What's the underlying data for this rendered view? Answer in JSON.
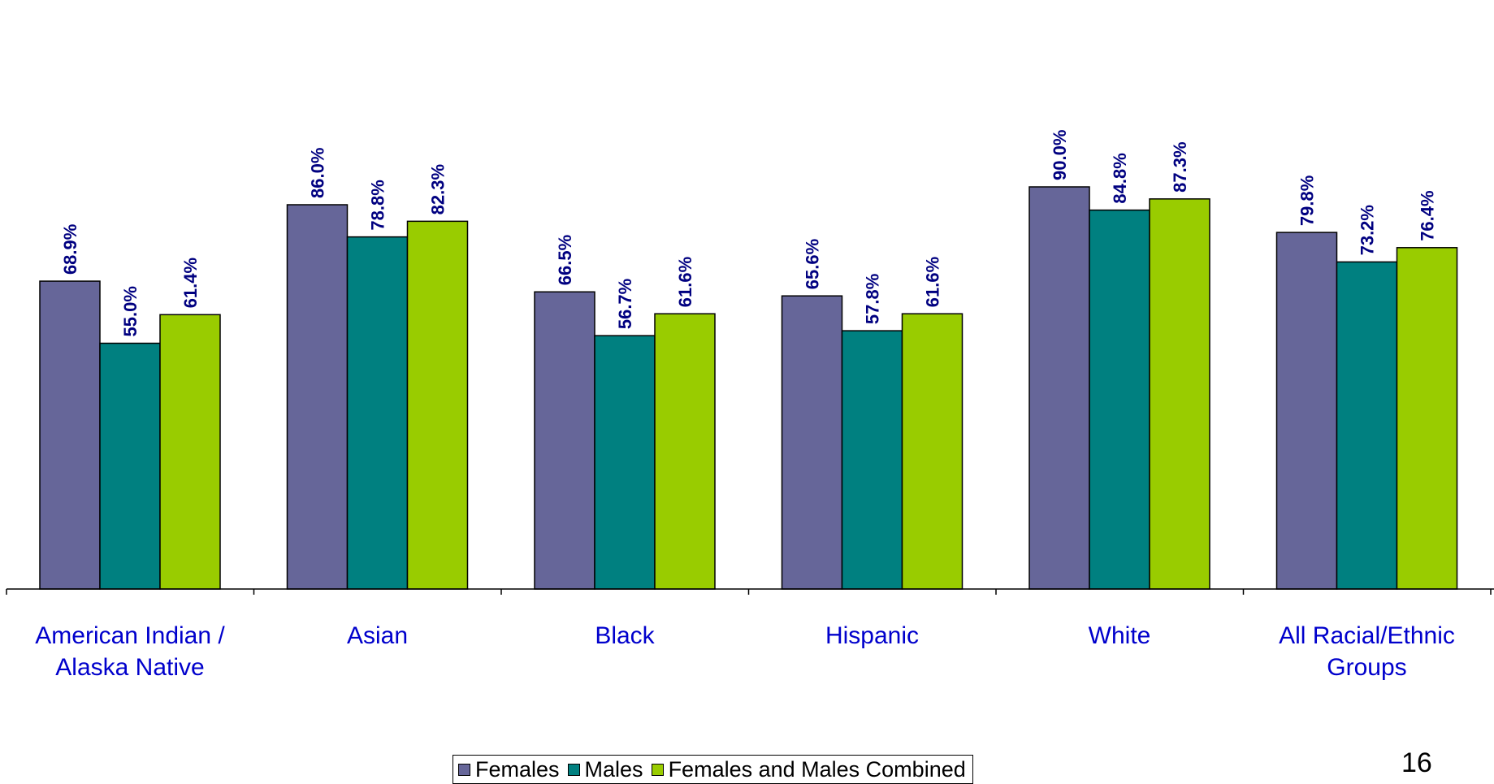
{
  "chart_data": {
    "type": "bar",
    "categories": [
      "American Indian / Alaska Native",
      "Asian",
      "Black",
      "Hispanic",
      "White",
      "All Racial/Ethnic Groups"
    ],
    "category_lines": [
      [
        "American Indian /",
        "Alaska Native"
      ],
      [
        "Asian"
      ],
      [
        "Black"
      ],
      [
        "Hispanic"
      ],
      [
        "White"
      ],
      [
        "All Racial/Ethnic",
        "Groups"
      ]
    ],
    "series": [
      {
        "name": "Females",
        "color": "#666699",
        "values": [
          68.9,
          86.0,
          66.5,
          65.6,
          90.0,
          79.8
        ],
        "labels": [
          "68.9%",
          "86.0%",
          "66.5%",
          "65.6%",
          "90.0%",
          "79.8%"
        ]
      },
      {
        "name": "Males",
        "color": "#008080",
        "values": [
          55.0,
          78.8,
          56.7,
          57.8,
          84.8,
          73.2
        ],
        "labels": [
          "55.0%",
          "78.8%",
          "56.7%",
          "57.8%",
          "84.8%",
          "73.2%"
        ]
      },
      {
        "name": "Females and Males Combined",
        "color": "#99CC00",
        "values": [
          61.4,
          82.3,
          61.6,
          61.6,
          87.3,
          76.4
        ],
        "labels": [
          "61.4%",
          "82.3%",
          "61.6%",
          "61.6%",
          "87.3%",
          "76.4%"
        ]
      }
    ],
    "ylim": [
      0,
      100
    ],
    "grid": false,
    "legend_position": "bottom",
    "title": "",
    "xlabel": "",
    "ylabel": ""
  },
  "page": {
    "number": "16"
  }
}
